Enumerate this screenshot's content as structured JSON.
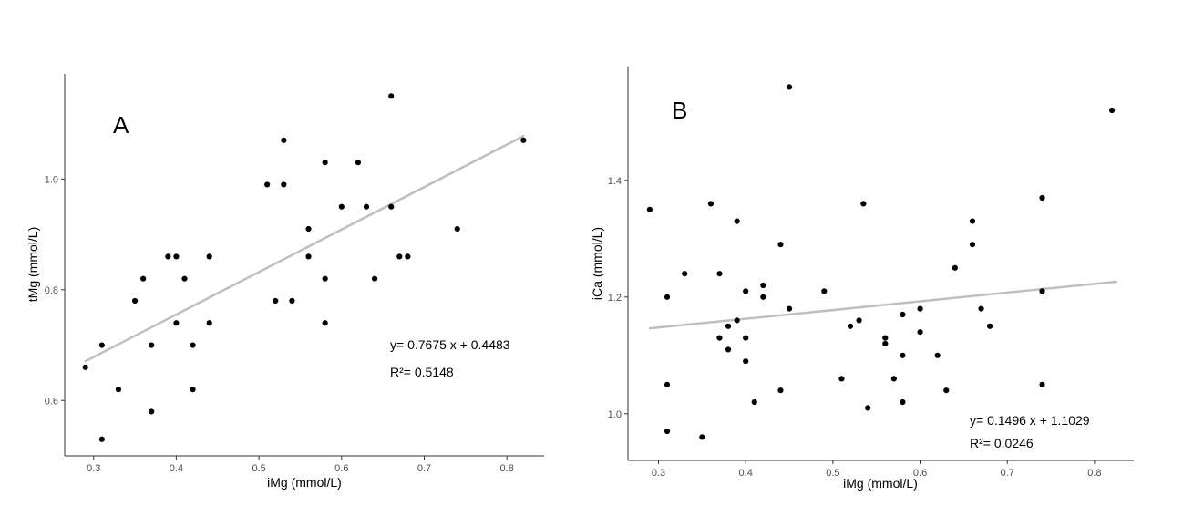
{
  "chart_data": [
    {
      "type": "scatter",
      "panel_label": "A",
      "xlabel": "iMg (mmol/L)",
      "ylabel": "tMg (mmol/L)",
      "xlim": [
        0.265,
        0.845
      ],
      "ylim": [
        0.5,
        1.19
      ],
      "x_ticks": [
        0.3,
        0.4,
        0.5,
        0.6,
        0.7,
        0.8
      ],
      "x_tick_labels": [
        "0.3",
        "0.4",
        "0.5",
        "0.6",
        "0.7",
        "0.8"
      ],
      "y_ticks": [
        0.6,
        0.8,
        1.0
      ],
      "y_tick_labels": [
        "0.6",
        "0.8",
        "1.0"
      ],
      "grid": false,
      "points": [
        [
          0.29,
          0.66
        ],
        [
          0.31,
          0.7
        ],
        [
          0.31,
          0.53
        ],
        [
          0.33,
          0.62
        ],
        [
          0.35,
          0.78
        ],
        [
          0.36,
          0.82
        ],
        [
          0.37,
          0.7
        ],
        [
          0.37,
          0.58
        ],
        [
          0.39,
          0.86
        ],
        [
          0.4,
          0.86
        ],
        [
          0.4,
          0.74
        ],
        [
          0.41,
          0.82
        ],
        [
          0.42,
          0.7
        ],
        [
          0.42,
          0.62
        ],
        [
          0.44,
          0.86
        ],
        [
          0.44,
          0.74
        ],
        [
          0.51,
          0.99
        ],
        [
          0.52,
          0.78
        ],
        [
          0.53,
          1.07
        ],
        [
          0.53,
          0.99
        ],
        [
          0.54,
          0.78
        ],
        [
          0.56,
          0.91
        ],
        [
          0.56,
          0.86
        ],
        [
          0.58,
          1.03
        ],
        [
          0.58,
          0.82
        ],
        [
          0.58,
          0.74
        ],
        [
          0.6,
          0.95
        ],
        [
          0.62,
          1.03
        ],
        [
          0.63,
          0.95
        ],
        [
          0.64,
          0.82
        ],
        [
          0.66,
          1.15
        ],
        [
          0.66,
          0.95
        ],
        [
          0.67,
          0.86
        ],
        [
          0.68,
          0.86
        ],
        [
          0.74,
          0.91
        ],
        [
          0.82,
          1.07
        ]
      ],
      "trendline": {
        "slope": 0.7675,
        "intercept": 0.4483,
        "x_range": [
          0.29,
          0.82
        ],
        "color": "#bfbfbf"
      },
      "equation_text": "y= 0.7675 x + 0.4483",
      "r2_text": "R²= 0.5148",
      "point_color": "#000000"
    },
    {
      "type": "scatter",
      "panel_label": "B",
      "xlabel": "iMg (mmol/L)",
      "ylabel": "iCa (mmol/L)",
      "xlim": [
        0.265,
        0.845
      ],
      "ylim": [
        0.92,
        1.595
      ],
      "x_ticks": [
        0.3,
        0.4,
        0.5,
        0.6,
        0.7,
        0.8
      ],
      "x_tick_labels": [
        "0.3",
        "0.4",
        "0.5",
        "0.6",
        "0.7",
        "0.8"
      ],
      "y_ticks": [
        1.0,
        1.2,
        1.4
      ],
      "y_tick_labels": [
        "1.0",
        "1.2",
        "1.4"
      ],
      "grid": false,
      "points": [
        [
          0.29,
          1.35
        ],
        [
          0.31,
          1.2
        ],
        [
          0.31,
          1.05
        ],
        [
          0.31,
          0.97
        ],
        [
          0.33,
          1.24
        ],
        [
          0.35,
          0.96
        ],
        [
          0.36,
          1.36
        ],
        [
          0.37,
          1.24
        ],
        [
          0.37,
          1.13
        ],
        [
          0.38,
          1.15
        ],
        [
          0.38,
          1.11
        ],
        [
          0.39,
          1.33
        ],
        [
          0.39,
          1.16
        ],
        [
          0.4,
          1.21
        ],
        [
          0.4,
          1.13
        ],
        [
          0.4,
          1.09
        ],
        [
          0.41,
          1.02
        ],
        [
          0.42,
          1.22
        ],
        [
          0.42,
          1.2
        ],
        [
          0.44,
          1.29
        ],
        [
          0.44,
          1.04
        ],
        [
          0.45,
          1.56
        ],
        [
          0.45,
          1.18
        ],
        [
          0.49,
          1.21
        ],
        [
          0.51,
          1.06
        ],
        [
          0.52,
          1.15
        ],
        [
          0.53,
          1.16
        ],
        [
          0.535,
          1.36
        ],
        [
          0.54,
          1.01
        ],
        [
          0.56,
          1.13
        ],
        [
          0.56,
          1.12
        ],
        [
          0.57,
          1.06
        ],
        [
          0.58,
          1.17
        ],
        [
          0.58,
          1.1
        ],
        [
          0.58,
          1.02
        ],
        [
          0.6,
          1.18
        ],
        [
          0.6,
          1.14
        ],
        [
          0.62,
          1.1
        ],
        [
          0.63,
          1.04
        ],
        [
          0.64,
          1.25
        ],
        [
          0.66,
          1.33
        ],
        [
          0.66,
          1.29
        ],
        [
          0.67,
          1.18
        ],
        [
          0.68,
          1.15
        ],
        [
          0.74,
          1.37
        ],
        [
          0.74,
          1.21
        ],
        [
          0.74,
          1.05
        ],
        [
          0.82,
          1.52
        ]
      ],
      "trendline": {
        "slope": 0.1496,
        "intercept": 1.1029,
        "x_range": [
          0.29,
          0.825
        ],
        "color": "#bfbfbf"
      },
      "equation_text": "y= 0.1496 x + 1.1029",
      "r2_text": "R²= 0.0246",
      "point_color": "#000000"
    }
  ]
}
